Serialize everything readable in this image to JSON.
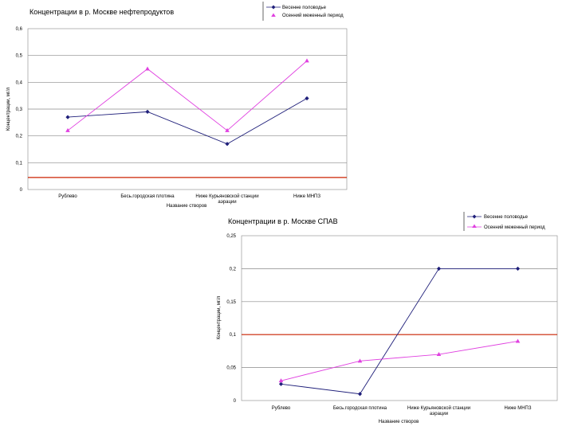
{
  "chart_data": [
    {
      "type": "line",
      "title": "Концентрации в р. Москве нефтепродуктов",
      "xlabel": "Название створов",
      "ylabel": "Концентрации, мг/л",
      "categories": [
        "Рублево",
        "Бесь.городская плотина",
        "Ниже Курьяновской станции",
        "Ниже МНПЗ"
      ],
      "category_suffix": [
        "",
        "",
        "аэрации",
        ""
      ],
      "y_ticks": [
        "0",
        "0,1",
        "0,2",
        "0,3",
        "0,4",
        "0,5",
        "0,6"
      ],
      "ylim": [
        0,
        0.6
      ],
      "grid": true,
      "legend_position": "top-right",
      "series": [
        {
          "name": "Весенне половодье",
          "values": [
            0.27,
            0.29,
            0.17,
            0.34
          ],
          "color": "#1f1f7a",
          "marker": "diamond"
        },
        {
          "name": "Осенний меженный период",
          "values": [
            0.22,
            0.45,
            0.22,
            0.48
          ],
          "color": "#e040e0",
          "marker": "triangle"
        }
      ],
      "reference_line": {
        "value": 0.045,
        "color": "#cc2200"
      }
    },
    {
      "type": "line",
      "title": "Концентрации в р. Москве СПАВ",
      "xlabel": "Название створов",
      "ylabel": "Концентрации, мг/л",
      "categories": [
        "Рублево",
        "Бесь.городская плотина",
        "Ниже Курьяновской станции",
        "Ниже МНПЗ"
      ],
      "category_suffix": [
        "",
        "",
        "аэрации",
        ""
      ],
      "y_ticks": [
        "0",
        "0,05",
        "0,1",
        "0,15",
        "0,2",
        "0,25"
      ],
      "ylim": [
        0,
        0.25
      ],
      "grid": true,
      "legend_position": "top-right",
      "series": [
        {
          "name": "Весенне половодье",
          "values": [
            0.025,
            0.01,
            0.2,
            0.2
          ],
          "color": "#1f1f7a",
          "marker": "diamond"
        },
        {
          "name": "Осенний меженный период",
          "values": [
            0.03,
            0.06,
            0.07,
            0.09
          ],
          "color": "#e040e0",
          "marker": "triangle"
        }
      ],
      "reference_line": {
        "value": 0.1,
        "color": "#cc2200"
      }
    }
  ]
}
